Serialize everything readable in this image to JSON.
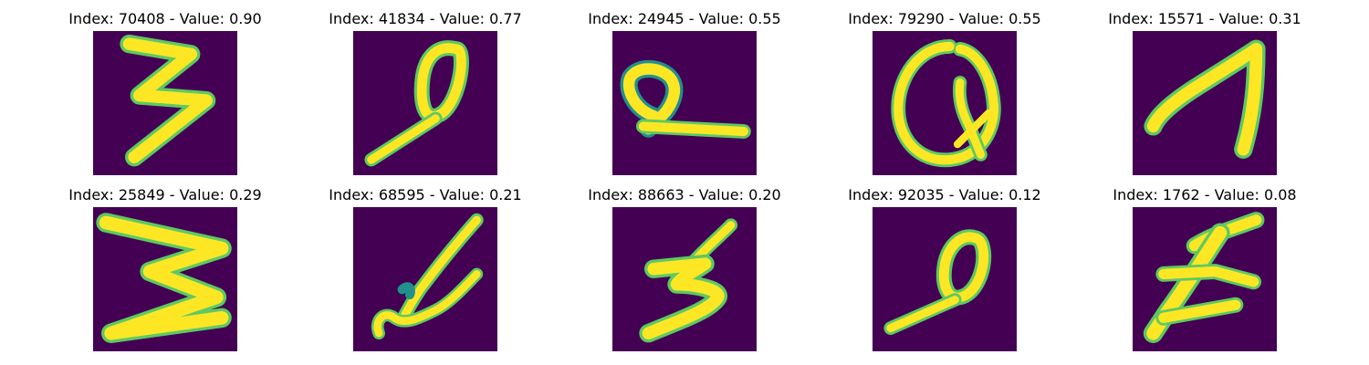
{
  "figure": {
    "colormap": [
      "#440154",
      "#3b528b",
      "#21918c",
      "#5ec962",
      "#fde725"
    ],
    "background_color": "#440154",
    "stroke_color": "#fde725",
    "panels": [
      {
        "title": "Index: 70408 - Value: 0.90",
        "glyph": "three-like-glyph"
      },
      {
        "title": "Index: 41834 - Value: 0.77",
        "glyph": "zero-with-tail-glyph"
      },
      {
        "title": "Index: 24945 - Value: 0.55",
        "glyph": "loop-with-underline-glyph"
      },
      {
        "title": "Index: 79290 - Value: 0.55",
        "glyph": "large-loop-glyph"
      },
      {
        "title": "Index: 15571 - Value: 0.31",
        "glyph": "seven-like-glyph"
      },
      {
        "title": "Index: 25849 - Value: 0.29",
        "glyph": "wide-three-glyph"
      },
      {
        "title": "Index: 68595 - Value: 0.21",
        "glyph": "cursive-glyph"
      },
      {
        "title": "Index: 88663 - Value: 0.20",
        "glyph": "five-like-glyph"
      },
      {
        "title": "Index: 92035 - Value: 0.12",
        "glyph": "zero-with-tail-glyph-2"
      },
      {
        "title": "Index: 1762 - Value: 0.08",
        "glyph": "slanted-glyph"
      }
    ]
  }
}
